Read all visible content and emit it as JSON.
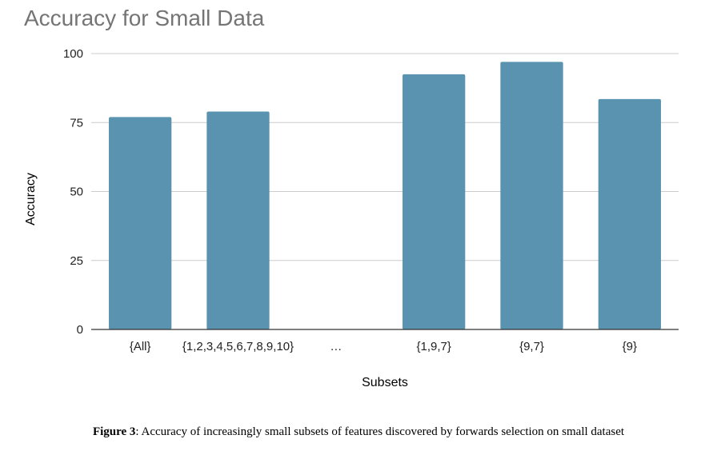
{
  "chart_data": {
    "type": "bar",
    "title": "Accuracy for Small Data",
    "xlabel": "Subsets",
    "ylabel": "Accuracy",
    "categories": [
      "{All}",
      "{1,2,3,4,5,6,7,8,9,10}",
      "…",
      "{1,9,7}",
      "{9,7}",
      "{9}"
    ],
    "values": [
      77,
      79,
      null,
      92.5,
      97,
      83.5
    ],
    "ylim": [
      0,
      100
    ],
    "yticks": [
      "0",
      "25",
      "50",
      "75",
      "100"
    ],
    "ytick_values": [
      0,
      25,
      50,
      75,
      100
    ],
    "grid": true,
    "bar_color": "#5a93b0"
  },
  "caption": {
    "label": "Figure 3",
    "text": ": Accuracy of increasingly small subsets of features discovered by forwards selection on small dataset"
  }
}
